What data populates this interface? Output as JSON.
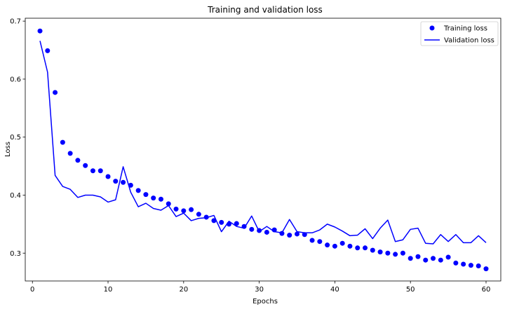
{
  "chart_data": {
    "type": "line",
    "title": "Training and validation loss",
    "xlabel": "Epochs",
    "ylabel": "Loss",
    "xlim": [
      -0.95,
      61.95
    ],
    "ylim": [
      0.252,
      0.705
    ],
    "xticks": [
      0,
      10,
      20,
      30,
      40,
      50,
      60
    ],
    "yticks": [
      0.3,
      0.4,
      0.5,
      0.6,
      0.7
    ],
    "legend_position": "top-right",
    "grid": false,
    "series": [
      {
        "name": "Training loss",
        "style": "points",
        "color": "#0000ff",
        "x": [
          1,
          2,
          3,
          4,
          5,
          6,
          7,
          8,
          9,
          10,
          11,
          12,
          13,
          14,
          15,
          16,
          17,
          18,
          19,
          20,
          21,
          22,
          23,
          24,
          25,
          26,
          27,
          28,
          29,
          30,
          31,
          32,
          33,
          34,
          35,
          36,
          37,
          38,
          39,
          40,
          41,
          42,
          43,
          44,
          45,
          46,
          47,
          48,
          49,
          50,
          51,
          52,
          53,
          54,
          55,
          56,
          57,
          58,
          59,
          60
        ],
        "y": [
          0.683,
          0.649,
          0.577,
          0.491,
          0.472,
          0.46,
          0.451,
          0.442,
          0.442,
          0.432,
          0.424,
          0.422,
          0.417,
          0.408,
          0.401,
          0.395,
          0.393,
          0.385,
          0.376,
          0.373,
          0.375,
          0.367,
          0.362,
          0.356,
          0.353,
          0.35,
          0.351,
          0.346,
          0.341,
          0.339,
          0.336,
          0.34,
          0.334,
          0.331,
          0.333,
          0.332,
          0.322,
          0.32,
          0.314,
          0.312,
          0.317,
          0.312,
          0.309,
          0.309,
          0.305,
          0.302,
          0.3,
          0.298,
          0.3,
          0.291,
          0.294,
          0.288,
          0.291,
          0.288,
          0.293,
          0.283,
          0.281,
          0.279,
          0.278,
          0.273
        ]
      },
      {
        "name": "Validation loss",
        "style": "line",
        "color": "#0000ff",
        "x": [
          1,
          2,
          3,
          4,
          5,
          6,
          7,
          8,
          9,
          10,
          11,
          12,
          13,
          14,
          15,
          16,
          17,
          18,
          19,
          20,
          21,
          22,
          23,
          24,
          25,
          26,
          27,
          28,
          29,
          30,
          31,
          32,
          33,
          34,
          35,
          36,
          37,
          38,
          39,
          40,
          41,
          42,
          43,
          44,
          45,
          46,
          47,
          48,
          49,
          50,
          51,
          52,
          53,
          54,
          55,
          56,
          57,
          58,
          59,
          60
        ],
        "y": [
          0.666,
          0.612,
          0.434,
          0.415,
          0.41,
          0.396,
          0.4,
          0.4,
          0.397,
          0.388,
          0.392,
          0.449,
          0.405,
          0.38,
          0.386,
          0.377,
          0.374,
          0.382,
          0.363,
          0.369,
          0.356,
          0.36,
          0.361,
          0.365,
          0.337,
          0.355,
          0.346,
          0.343,
          0.364,
          0.337,
          0.346,
          0.337,
          0.335,
          0.358,
          0.337,
          0.335,
          0.335,
          0.34,
          0.35,
          0.345,
          0.338,
          0.33,
          0.331,
          0.342,
          0.325,
          0.343,
          0.357,
          0.32,
          0.323,
          0.341,
          0.343,
          0.317,
          0.316,
          0.332,
          0.32,
          0.332,
          0.318,
          0.318,
          0.33,
          0.318
        ]
      }
    ]
  }
}
